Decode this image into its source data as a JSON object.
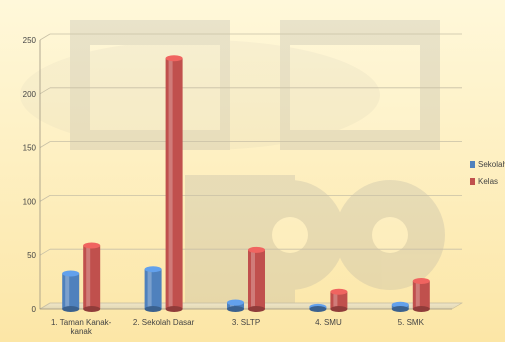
{
  "chart_data": {
    "type": "bar",
    "categories": [
      "1. Taman Kanak-kanak",
      "2. Sekolah Dasar",
      "3. SLTP",
      "4. SMU",
      "5. SMK"
    ],
    "category_label_lines": [
      [
        "1. Taman Kanak-",
        "kanak"
      ],
      [
        "2. Sekolah Dasar"
      ],
      [
        "3. SLTP"
      ],
      [
        "4. SMU"
      ],
      [
        "5. SMK"
      ]
    ],
    "series": [
      {
        "name": "Sekolah",
        "values": [
          33,
          37,
          6,
          2,
          4
        ],
        "color": "#4F81BD"
      },
      {
        "name": "Kelas",
        "values": [
          59,
          233,
          55,
          16,
          26
        ],
        "color": "#C0504D"
      }
    ],
    "y_ticks": [
      "0",
      "50",
      "100",
      "150",
      "200",
      "250"
    ],
    "ylim": [
      0,
      250
    ],
    "grid": true,
    "legend": "right",
    "background_colors": [
      "#FFF7D6",
      "#FCE7A8"
    ]
  }
}
